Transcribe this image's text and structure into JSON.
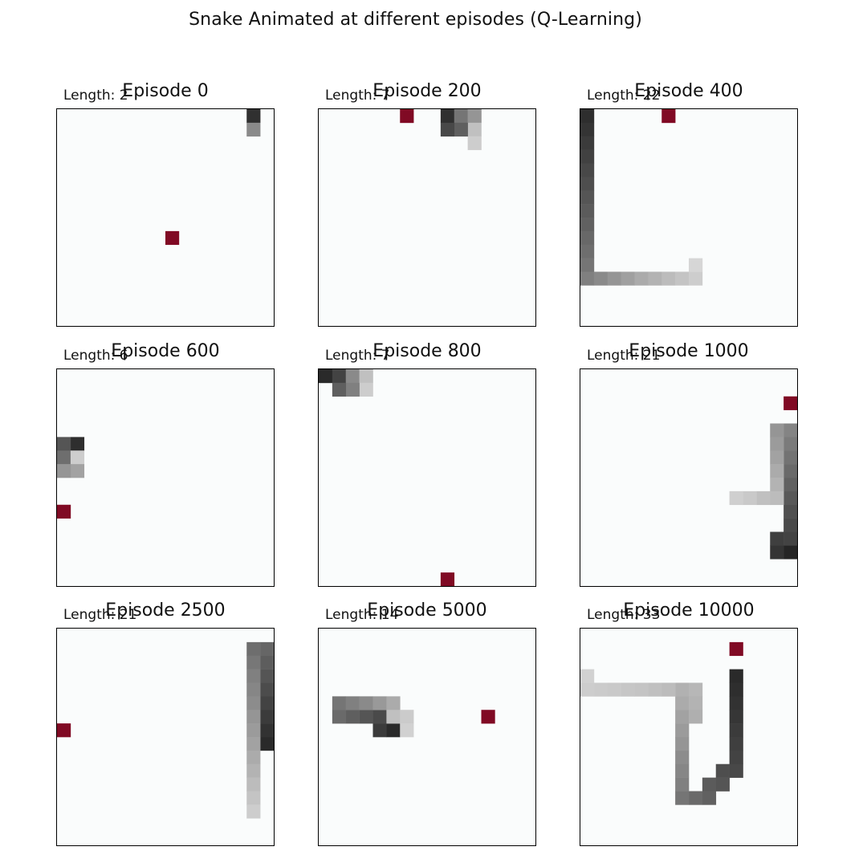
{
  "title": "Snake Animated at different episodes (Q-Learning)",
  "colors": {
    "background": "#fafcfc",
    "food": "#800a24",
    "border": "#000000"
  },
  "chart_data": {
    "type": "heatmap",
    "grid_size": 16,
    "panels": [
      {
        "title": "Episode 0",
        "length_label": "Length: 2",
        "food": [
          8,
          9
        ],
        "snake_cells": [
          [
            14,
            0,
            0.13
          ],
          [
            14,
            1,
            0.55
          ]
        ]
      },
      {
        "title": "Episode 200",
        "length_label": "Length: 7",
        "food": [
          6,
          0
        ],
        "snake_cells": [
          [
            9,
            0,
            0.13
          ],
          [
            10,
            0,
            0.45
          ],
          [
            11,
            0,
            0.6
          ],
          [
            11,
            1,
            0.8
          ],
          [
            11,
            2,
            0.86
          ],
          [
            10,
            1,
            0.35
          ],
          [
            9,
            1,
            0.24
          ]
        ]
      },
      {
        "title": "Episode 400",
        "length_label": "Length: 22",
        "food": [
          6,
          0
        ],
        "snake_cells": [
          [
            0,
            0,
            0.12
          ],
          [
            0,
            1,
            0.15
          ],
          [
            0,
            2,
            0.18
          ],
          [
            0,
            3,
            0.21
          ],
          [
            0,
            4,
            0.24
          ],
          [
            0,
            5,
            0.27
          ],
          [
            0,
            6,
            0.3
          ],
          [
            0,
            7,
            0.33
          ],
          [
            0,
            8,
            0.36
          ],
          [
            0,
            9,
            0.39
          ],
          [
            0,
            10,
            0.42
          ],
          [
            0,
            11,
            0.45
          ],
          [
            0,
            12,
            0.5
          ],
          [
            1,
            12,
            0.55
          ],
          [
            2,
            12,
            0.6
          ],
          [
            3,
            12,
            0.65
          ],
          [
            4,
            12,
            0.7
          ],
          [
            5,
            12,
            0.74
          ],
          [
            6,
            12,
            0.78
          ],
          [
            7,
            12,
            0.82
          ],
          [
            8,
            12,
            0.86
          ],
          [
            8,
            11,
            0.9
          ]
        ]
      },
      {
        "title": "Episode 600",
        "length_label": "Length: 6",
        "food": [
          0,
          10
        ],
        "snake_cells": [
          [
            1,
            5,
            0.12
          ],
          [
            0,
            5,
            0.3
          ],
          [
            0,
            6,
            0.42
          ],
          [
            1,
            6,
            0.86
          ],
          [
            1,
            7,
            0.66
          ],
          [
            0,
            7,
            0.6
          ]
        ]
      },
      {
        "title": "Episode 800",
        "length_label": "Length: 7",
        "food": [
          9,
          15
        ],
        "snake_cells": [
          [
            0,
            0,
            0.1
          ],
          [
            1,
            0,
            0.22
          ],
          [
            2,
            0,
            0.55
          ],
          [
            3,
            0,
            0.8
          ],
          [
            3,
            1,
            0.86
          ],
          [
            2,
            1,
            0.5
          ],
          [
            1,
            1,
            0.35
          ]
        ]
      },
      {
        "title": "Episode 1000",
        "length_label": "Length: 21",
        "food": [
          15,
          2
        ],
        "snake_cells": [
          [
            15,
            13,
            0.08
          ],
          [
            14,
            13,
            0.15
          ],
          [
            14,
            12,
            0.2
          ],
          [
            15,
            12,
            0.22
          ],
          [
            15,
            11,
            0.25
          ],
          [
            15,
            10,
            0.28
          ],
          [
            15,
            9,
            0.32
          ],
          [
            15,
            8,
            0.36
          ],
          [
            15,
            7,
            0.4
          ],
          [
            15,
            6,
            0.44
          ],
          [
            15,
            5,
            0.48
          ],
          [
            15,
            4,
            0.52
          ],
          [
            14,
            4,
            0.6
          ],
          [
            14,
            5,
            0.63
          ],
          [
            14,
            6,
            0.66
          ],
          [
            14,
            7,
            0.7
          ],
          [
            14,
            8,
            0.74
          ],
          [
            13,
            9,
            0.8
          ],
          [
            12,
            9,
            0.84
          ],
          [
            11,
            9,
            0.87
          ],
          [
            14,
            9,
            0.78
          ]
        ]
      },
      {
        "title": "Episode 2500",
        "length_label": "Length: 21",
        "food": [
          0,
          7
        ],
        "snake_cells": [
          [
            15,
            8,
            0.1
          ],
          [
            15,
            7,
            0.14
          ],
          [
            15,
            6,
            0.18
          ],
          [
            15,
            5,
            0.22
          ],
          [
            15,
            4,
            0.26
          ],
          [
            15,
            3,
            0.3
          ],
          [
            15,
            2,
            0.34
          ],
          [
            15,
            1,
            0.38
          ],
          [
            14,
            1,
            0.42
          ],
          [
            14,
            2,
            0.46
          ],
          [
            14,
            3,
            0.5
          ],
          [
            14,
            4,
            0.53
          ],
          [
            14,
            5,
            0.56
          ],
          [
            14,
            6,
            0.6
          ],
          [
            14,
            7,
            0.63
          ],
          [
            14,
            8,
            0.66
          ],
          [
            14,
            9,
            0.7
          ],
          [
            14,
            10,
            0.74
          ],
          [
            14,
            11,
            0.78
          ],
          [
            14,
            12,
            0.82
          ],
          [
            14,
            13,
            0.86
          ]
        ]
      },
      {
        "title": "Episode 5000",
        "length_label": "Length: 14",
        "food": [
          12,
          6
        ],
        "snake_cells": [
          [
            5,
            7,
            0.1
          ],
          [
            4,
            7,
            0.18
          ],
          [
            4,
            6,
            0.25
          ],
          [
            3,
            6,
            0.3
          ],
          [
            2,
            6,
            0.35
          ],
          [
            1,
            6,
            0.4
          ],
          [
            1,
            5,
            0.45
          ],
          [
            2,
            5,
            0.5
          ],
          [
            3,
            5,
            0.55
          ],
          [
            4,
            5,
            0.62
          ],
          [
            5,
            5,
            0.7
          ],
          [
            5,
            6,
            0.8
          ],
          [
            6,
            6,
            0.85
          ],
          [
            6,
            7,
            0.88
          ]
        ]
      },
      {
        "title": "Episode 10000",
        "length_label": "Length: 33",
        "food": [
          11,
          1
        ],
        "snake_cells": [
          [
            11,
            3,
            0.1
          ],
          [
            11,
            4,
            0.12
          ],
          [
            11,
            5,
            0.14
          ],
          [
            11,
            6,
            0.16
          ],
          [
            11,
            7,
            0.18
          ],
          [
            11,
            8,
            0.2
          ],
          [
            11,
            9,
            0.22
          ],
          [
            11,
            10,
            0.24
          ],
          [
            10,
            10,
            0.27
          ],
          [
            10,
            11,
            0.3
          ],
          [
            9,
            11,
            0.33
          ],
          [
            9,
            12,
            0.36
          ],
          [
            8,
            12,
            0.4
          ],
          [
            7,
            12,
            0.45
          ],
          [
            7,
            11,
            0.5
          ],
          [
            7,
            10,
            0.53
          ],
          [
            7,
            9,
            0.56
          ],
          [
            7,
            8,
            0.6
          ],
          [
            7,
            7,
            0.63
          ],
          [
            7,
            6,
            0.66
          ],
          [
            7,
            5,
            0.7
          ],
          [
            7,
            4,
            0.73
          ],
          [
            8,
            4,
            0.76
          ],
          [
            8,
            5,
            0.74
          ],
          [
            6,
            4,
            0.78
          ],
          [
            5,
            4,
            0.8
          ],
          [
            4,
            4,
            0.82
          ],
          [
            3,
            4,
            0.83
          ],
          [
            2,
            4,
            0.84
          ],
          [
            1,
            4,
            0.85
          ],
          [
            0,
            4,
            0.86
          ],
          [
            0,
            3,
            0.88
          ],
          [
            8,
            6,
            0.72
          ]
        ]
      }
    ]
  }
}
